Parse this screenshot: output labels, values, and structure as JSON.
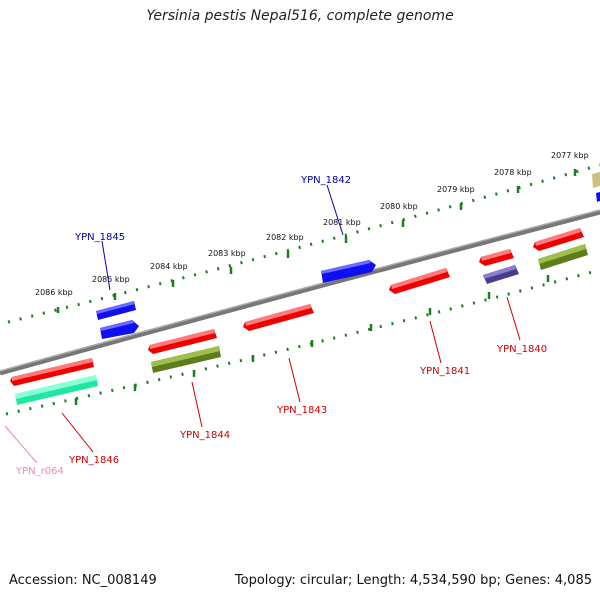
{
  "title": "Yersinia pestis Nepal516, complete genome",
  "footer": {
    "accession": "Accession: NC_008149",
    "summary": "Topology: circular; Length: 4,534,590 bp; Genes: 4,085"
  },
  "colors": {
    "backbone": "#808080",
    "ruler": "#1e7d1e",
    "forward_gene": "#0000ee",
    "reverse_gene": "#ee0000",
    "cds_olive": "#5e7d1c",
    "cds_green": "#1fe6a0",
    "cds_purple": "#4b3b8c",
    "rna": "#ee88bb"
  },
  "ruler_labels": [
    "2086 kbp",
    "2085 kbp",
    "2084 kbp",
    "2083 kbp",
    "2082 kbp",
    "2081 kbp",
    "2080 kbp",
    "2079 kbp",
    "2078 kbp",
    "2077 kbp"
  ],
  "gene_labels": [
    {
      "text": "YPN_1845",
      "color": "#0000aa"
    },
    {
      "text": "YPN_1842",
      "color": "#0000aa"
    },
    {
      "text": "YPN_1846",
      "color": "#cc0000"
    },
    {
      "text": "YPN_1844",
      "color": "#cc0000"
    },
    {
      "text": "YPN_1843",
      "color": "#cc0000"
    },
    {
      "text": "YPN_1841",
      "color": "#cc0000"
    },
    {
      "text": "YPN_1840",
      "color": "#cc0000"
    },
    {
      "text": "YPN_r064",
      "color": "#ee88bb"
    }
  ]
}
